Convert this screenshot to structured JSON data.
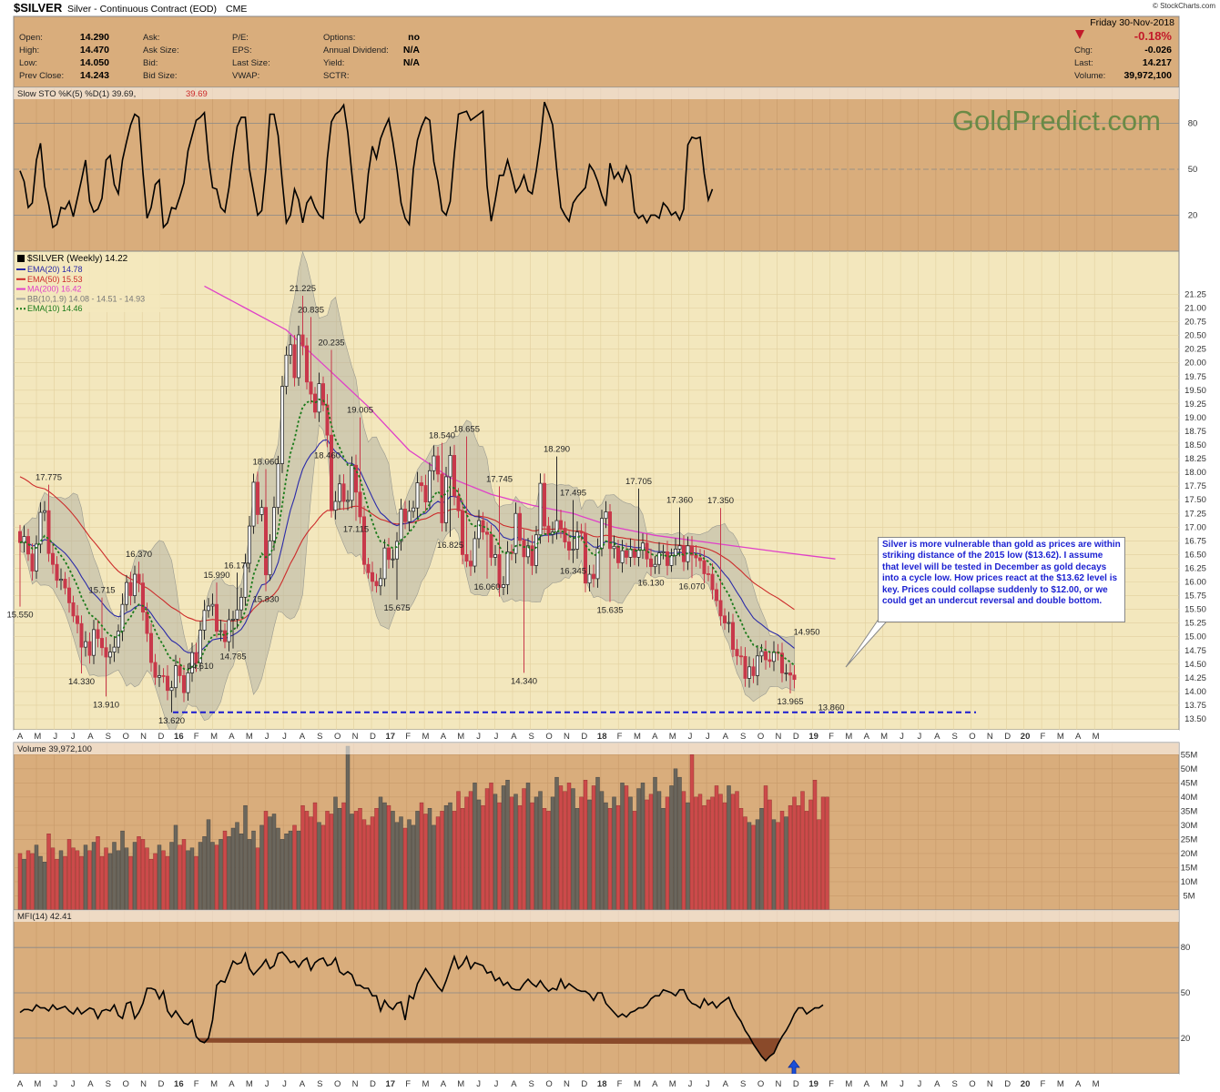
{
  "header": {
    "symbol": "$SILVER",
    "title": "Silver - Continuous Contract (EOD)",
    "exchange": "CME",
    "date": "Friday 30-Nov-2018",
    "stockcharts": "© StockCharts.com",
    "quote": [
      {
        "label": "Open:",
        "value": "14.290"
      },
      {
        "label": "High:",
        "value": "14.470"
      },
      {
        "label": "Low:",
        "value": "14.050"
      },
      {
        "label": "Prev Close:",
        "value": "14.243"
      }
    ],
    "ask": [
      "Ask:",
      "Ask Size:",
      "Bid:",
      "Bid Size:"
    ],
    "pe": [
      "P/E:",
      "EPS:",
      "Last Size:",
      "VWAP:"
    ],
    "options": [
      {
        "label": "Options:",
        "value": "no"
      },
      {
        "label": "Annual Dividend:",
        "value": "N/A"
      },
      {
        "label": "Yield:",
        "value": "N/A"
      },
      {
        "label": "SCTR:",
        "value": ""
      }
    ],
    "change_pct": "-0.18%",
    "right": [
      {
        "label": "Chg:",
        "value": "-0.026"
      },
      {
        "label": "Last:",
        "value": "14.217"
      },
      {
        "label": "Volume:",
        "value": "39,972,100"
      }
    ]
  },
  "colors": {
    "up": "#2a2a2a",
    "down": "#c8384a",
    "ema20": "#2a2aa8",
    "ema50": "#cc2a2a",
    "ma200": "#e040c8",
    "ema10": "#1a7a1a",
    "panel": "#d9ad7c",
    "main_bg": "#f3e7bd",
    "band": "#a8a8a0",
    "support": "#1a1ad0"
  },
  "watermark": "GoldPredict.com",
  "note": "Silver is more vulnerable than gold as prices are within striking distance of the 2015 low ($13.62). I assume that level will be tested in December as gold decays into a cycle low. How prices react at the $13.62 level is key. Prices could collapse suddenly to $12.00, or we could get an undercut reversal and double bottom.",
  "chart_data": [
    {
      "type": "line",
      "panel": "stochastic",
      "legend": "Slow STO %K(5) %D(1) 39.69,",
      "legend_value": "39.69",
      "ylim": [
        0,
        100
      ],
      "yticks": [
        20,
        50,
        80
      ],
      "values": [
        49,
        42,
        25,
        28,
        56,
        67,
        39,
        27,
        12,
        14,
        25,
        24,
        29,
        19,
        31,
        43,
        56,
        29,
        22,
        24,
        31,
        56,
        59,
        40,
        34,
        56,
        68,
        79,
        86,
        84,
        48,
        18,
        25,
        40,
        43,
        12,
        15,
        25,
        24,
        32,
        41,
        62,
        72,
        82,
        84,
        87,
        57,
        38,
        37,
        25,
        22,
        38,
        60,
        78,
        84,
        84,
        50,
        35,
        20,
        23,
        50,
        86,
        86,
        72,
        42,
        15,
        20,
        37,
        30,
        15,
        28,
        32,
        25,
        20,
        18,
        57,
        81,
        86,
        88,
        92,
        74,
        47,
        22,
        15,
        18,
        47,
        65,
        57,
        70,
        77,
        83,
        68,
        50,
        28,
        18,
        14,
        50,
        69,
        78,
        84,
        82,
        55,
        42,
        23,
        20,
        29,
        60,
        86,
        87,
        88,
        82,
        84,
        86,
        88,
        39,
        16,
        30,
        46,
        46,
        56,
        46,
        35,
        39,
        46,
        36,
        34,
        49,
        68,
        94,
        87,
        79,
        50,
        25,
        20,
        16,
        28,
        32,
        35,
        38,
        53,
        49,
        42,
        33,
        26,
        54,
        44,
        48,
        42,
        52,
        46,
        22,
        18,
        20,
        15,
        20,
        20,
        18,
        28,
        25,
        20,
        22,
        17,
        24,
        66,
        71,
        70,
        71,
        47,
        30,
        37
      ]
    },
    {
      "type": "candlestick",
      "panel": "price",
      "legend": "$SILVER (Weekly) 14.22",
      "ylim": [
        13.5,
        21.5
      ],
      "yticks": [
        13.5,
        13.75,
        14.0,
        14.25,
        14.5,
        14.75,
        15.0,
        15.25,
        15.5,
        15.75,
        16.0,
        16.25,
        16.5,
        16.75,
        17.0,
        17.25,
        17.5,
        17.75,
        18.0,
        18.25,
        18.5,
        18.75,
        19.0,
        19.25,
        19.5,
        19.75,
        20.0,
        20.25,
        20.5,
        20.75,
        21.0,
        21.25
      ],
      "close": [
        16.72,
        16.83,
        16.51,
        16.2,
        16.69,
        17.27,
        17.3,
        16.52,
        16.32,
        16.03,
        16.05,
        15.89,
        15.62,
        15.38,
        15.24,
        14.81,
        14.91,
        14.66,
        15.13,
        14.97,
        14.8,
        14.63,
        14.72,
        14.81,
        15.1,
        15.59,
        15.99,
        15.75,
        16.14,
        15.98,
        15.45,
        15.06,
        14.53,
        14.26,
        14.29,
        14.28,
        14.02,
        14.07,
        14.47,
        14.29,
        13.98,
        14.34,
        14.71,
        14.52,
        15.12,
        15.48,
        15.56,
        15.59,
        15.1,
        15.11,
        14.91,
        15.31,
        15.32,
        15.49,
        15.72,
        16.34,
        17.02,
        17.82,
        17.23,
        17.36,
        16.13,
        16.75,
        17.36,
        18.16,
        19.57,
        20.14,
        20.33,
        19.73,
        20.51,
        20.31,
        19.65,
        19.43,
        19.1,
        19.62,
        19.23,
        18.68,
        17.31,
        17.47,
        17.79,
        17.47,
        17.49,
        18.13,
        17.64,
        17.19,
        16.32,
        16.17,
        16.01,
        15.93,
        16.06,
        16.62,
        16.41,
        16.42,
        16.74,
        17.33,
        17.1,
        17.29,
        17.35,
        17.81,
        17.76,
        17.46,
        18.03,
        18.3,
        17.97,
        17.08,
        17.92,
        18.31,
        17.57,
        17.3,
        16.5,
        16.38,
        16.29,
        16.79,
        17.12,
        16.91,
        16.87,
        16.45,
        16.5,
        15.9,
        15.95,
        16.55,
        16.52,
        17.25,
        16.76,
        16.46,
        16.66,
        16.3,
        16.86,
        17.8,
        17.02,
        16.87,
        16.91,
        17.12,
        16.98,
        16.73,
        16.58,
        16.6,
        16.91,
        16.89,
        15.98,
        16.14,
        16.06,
        16.61,
        17.16,
        17.28,
        16.61,
        16.65,
        16.35,
        16.57,
        16.45,
        16.6,
        16.45,
        16.58,
        16.71,
        16.42,
        16.28,
        16.32,
        16.53,
        16.55,
        16.3,
        16.48,
        16.6,
        16.66,
        16.37,
        16.66,
        16.49,
        16.44,
        16.39,
        16.15,
        16.14,
        15.86,
        15.66,
        15.38,
        15.25,
        15.26,
        14.77,
        14.65,
        14.64,
        14.24,
        14.45,
        14.29,
        14.65,
        14.73,
        14.58,
        14.55,
        14.72,
        14.7,
        14.34,
        14.34,
        14.3,
        14.22
      ],
      "high_labels": [
        {
          "i": 7,
          "value": "17.775"
        },
        {
          "i": 20,
          "value": "15.715"
        },
        {
          "i": 29,
          "value": "16.370"
        },
        {
          "i": 48,
          "value": "15.990"
        },
        {
          "i": 53,
          "value": "16.170"
        },
        {
          "i": 60,
          "value": "18.060"
        },
        {
          "i": 69,
          "value": "21.225"
        },
        {
          "i": 71,
          "value": "20.835"
        },
        {
          "i": 76,
          "value": "20.235"
        },
        {
          "i": 83,
          "value": "19.005"
        },
        {
          "i": 103,
          "value": "18.540"
        },
        {
          "i": 109,
          "value": "18.655"
        },
        {
          "i": 117,
          "value": "17.745"
        },
        {
          "i": 131,
          "value": "18.290"
        },
        {
          "i": 135,
          "value": "17.495"
        },
        {
          "i": 151,
          "value": "17.705"
        },
        {
          "i": 161,
          "value": "17.360"
        },
        {
          "i": 171,
          "value": "17.350"
        },
        {
          "i": 192,
          "value": "14.950"
        }
      ],
      "low_labels": [
        {
          "i": 0,
          "value": "15.550"
        },
        {
          "i": 15,
          "value": "14.330"
        },
        {
          "i": 21,
          "value": "13.910"
        },
        {
          "i": 37,
          "value": "13.620"
        },
        {
          "i": 44,
          "value": "14.610"
        },
        {
          "i": 52,
          "value": "14.785"
        },
        {
          "i": 60,
          "value": "15.830"
        },
        {
          "i": 75,
          "value": "18.460"
        },
        {
          "i": 82,
          "value": "17.115"
        },
        {
          "i": 92,
          "value": "15.675"
        },
        {
          "i": 105,
          "value": "16.825"
        },
        {
          "i": 114,
          "value": "16.060"
        },
        {
          "i": 123,
          "value": "14.340"
        },
        {
          "i": 135,
          "value": "16.345"
        },
        {
          "i": 144,
          "value": "15.635"
        },
        {
          "i": 154,
          "value": "16.130"
        },
        {
          "i": 164,
          "value": "16.070"
        },
        {
          "i": 188,
          "value": "13.965"
        },
        {
          "i": 198,
          "value": "13.860"
        }
      ],
      "support_level": 13.62,
      "overlays": [
        {
          "name": "EMA(20) 14.78",
          "color": "#2a2aa8",
          "dash": false
        },
        {
          "name": "EMA(50) 15.53",
          "color": "#cc2a2a",
          "dash": false
        },
        {
          "name": "MA(200) 16.42",
          "color": "#e040c8",
          "dash": false
        },
        {
          "name": "BB(10,1.9) 14.08 - 14.51 - 14.93",
          "color": "#a8a8a0",
          "dash": false
        },
        {
          "name": "EMA(10) 14.46",
          "color": "#1a7a1a",
          "dash": true
        }
      ],
      "ma200": [
        {
          "x": 45,
          "y": 21.4
        },
        {
          "x": 55,
          "y": 21.0
        },
        {
          "x": 65,
          "y": 20.6
        },
        {
          "x": 75,
          "y": 19.9
        },
        {
          "x": 85,
          "y": 19.2
        },
        {
          "x": 95,
          "y": 18.4
        },
        {
          "x": 105,
          "y": 17.9
        },
        {
          "x": 115,
          "y": 17.6
        },
        {
          "x": 125,
          "y": 17.4
        },
        {
          "x": 135,
          "y": 17.25
        },
        {
          "x": 145,
          "y": 17.0
        },
        {
          "x": 155,
          "y": 16.85
        },
        {
          "x": 165,
          "y": 16.75
        },
        {
          "x": 175,
          "y": 16.65
        },
        {
          "x": 185,
          "y": 16.55
        },
        {
          "x": 199,
          "y": 16.42
        }
      ],
      "x_axis_labels": [
        "A",
        "M",
        "J",
        "J",
        "A",
        "S",
        "O",
        "N",
        "D",
        "16",
        "F",
        "M",
        "A",
        "M",
        "J",
        "J",
        "A",
        "S",
        "O",
        "N",
        "D",
        "17",
        "F",
        "M",
        "A",
        "M",
        "J",
        "J",
        "A",
        "S",
        "O",
        "N",
        "D",
        "18",
        "F",
        "M",
        "A",
        "M",
        "J",
        "J",
        "A",
        "S",
        "O",
        "N",
        "D",
        "19",
        "F",
        "M",
        "A",
        "M",
        "J",
        "J",
        "A",
        "S",
        "O",
        "N",
        "D",
        "20",
        "F",
        "M",
        "A",
        "M"
      ]
    },
    {
      "type": "bar",
      "panel": "volume",
      "legend": "Volume 39,972,100",
      "ylim": [
        0,
        58
      ],
      "yticks": [
        "5M",
        "10M",
        "15M",
        "20M",
        "25M",
        "30M",
        "35M",
        "40M",
        "45M",
        "50M",
        "55M"
      ],
      "values": [
        20,
        18,
        21,
        20,
        23,
        19,
        17,
        27,
        22,
        18,
        21,
        19,
        25,
        22,
        21,
        19,
        23,
        21,
        24,
        26,
        19,
        22,
        20,
        24,
        21,
        28,
        22,
        19,
        24,
        26,
        25,
        22,
        18,
        20,
        23,
        21,
        19,
        24,
        30,
        23,
        25,
        21,
        22,
        19,
        24,
        26,
        32,
        24,
        23,
        25,
        28,
        26,
        29,
        31,
        27,
        37,
        25,
        28,
        22,
        30,
        35,
        33,
        34,
        29,
        25,
        27,
        28,
        30,
        28,
        37,
        35,
        33,
        38,
        31,
        30,
        35,
        34,
        40,
        36,
        38,
        58,
        34,
        35,
        36,
        32,
        30,
        33,
        36,
        40,
        38,
        37,
        35,
        31,
        33,
        29,
        32,
        30,
        35,
        38,
        34,
        36,
        30,
        33,
        35,
        37,
        38,
        35,
        42,
        36,
        40,
        42,
        45,
        39,
        37,
        43,
        45,
        41,
        38,
        44,
        46,
        40,
        41,
        37,
        43,
        45,
        38,
        40,
        42,
        36,
        35,
        40,
        47,
        44,
        42,
        45,
        43,
        36,
        40,
        46,
        39,
        44,
        47,
        42,
        38,
        36,
        40,
        37,
        45,
        44,
        40,
        35,
        43,
        45,
        39,
        41,
        47,
        42,
        36,
        40,
        44,
        50,
        47,
        42,
        38,
        55,
        40,
        41,
        37,
        39,
        40,
        44,
        41,
        38,
        44,
        41,
        42,
        36,
        33,
        31,
        30,
        32,
        36,
        44,
        39,
        32,
        31,
        35,
        33,
        37,
        40,
        37,
        42,
        35,
        39,
        46,
        32,
        40,
        40
      ]
    },
    {
      "type": "line",
      "panel": "mfi",
      "legend": "MFI(14) 42.41",
      "ylim": [
        0,
        100
      ],
      "yticks": [
        20,
        50,
        80
      ],
      "values": [
        37,
        39,
        39,
        38,
        42,
        40,
        40,
        38,
        42,
        39,
        40,
        41,
        38,
        36,
        40,
        36,
        38,
        40,
        39,
        33,
        38,
        39,
        38,
        42,
        35,
        33,
        43,
        44,
        33,
        37,
        43,
        53,
        53,
        52,
        46,
        51,
        38,
        34,
        38,
        34,
        30,
        29,
        32,
        21,
        18,
        17,
        20,
        32,
        55,
        58,
        57,
        64,
        71,
        69,
        70,
        76,
        66,
        62,
        65,
        68,
        72,
        66,
        68,
        76,
        77,
        74,
        70,
        71,
        67,
        71,
        73,
        65,
        70,
        72,
        73,
        68,
        69,
        73,
        64,
        62,
        64,
        62,
        55,
        55,
        53,
        53,
        48,
        48,
        38,
        45,
        41,
        39,
        43,
        44,
        32,
        48,
        46,
        56,
        61,
        66,
        62,
        58,
        54,
        51,
        58,
        66,
        74,
        66,
        69,
        74,
        66,
        70,
        69,
        68,
        63,
        64,
        58,
        60,
        55,
        57,
        53,
        52,
        52,
        56,
        59,
        56,
        54,
        58,
        54,
        51,
        53,
        52,
        59,
        53,
        56,
        54,
        52,
        51,
        51,
        49,
        45,
        50,
        50,
        43,
        40,
        37,
        34,
        36,
        34,
        37,
        38,
        40,
        40,
        42,
        46,
        48,
        48,
        52,
        51,
        50,
        48,
        52,
        52,
        46,
        43,
        42,
        40,
        46,
        42,
        44,
        40,
        43,
        45,
        47,
        40,
        35,
        31,
        25,
        21,
        16,
        12,
        8,
        5,
        8,
        10,
        16,
        21,
        25,
        30,
        36,
        40,
        40,
        36,
        38,
        40,
        40,
        42
      ]
    }
  ]
}
